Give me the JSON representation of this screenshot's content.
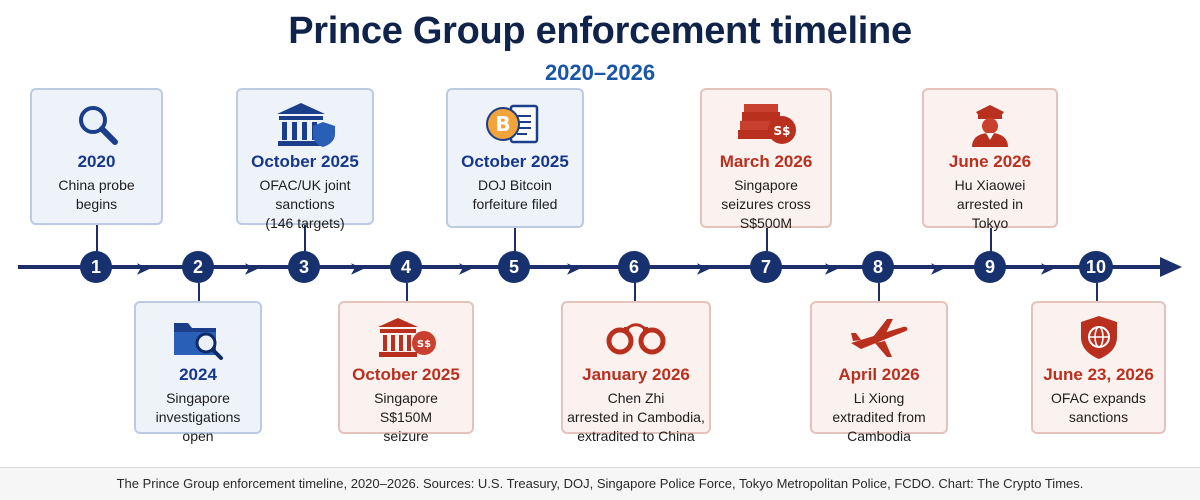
{
  "title": "Prince Group enforcement timeline",
  "subtitle": "2020–2026",
  "events": [
    {
      "number": "1",
      "date": "2020",
      "text": "China probe\nbegins",
      "icon": "magnifier-icon",
      "accent": "blue"
    },
    {
      "number": "2",
      "date": "2024",
      "text": "Singapore\ninvestigations\nopen",
      "icon": "folder-search-icon",
      "accent": "blue"
    },
    {
      "number": "3",
      "date": "October 2025",
      "text": "OFAC/UK joint\nsanctions\n(146 targets)",
      "icon": "bank-shield-icon",
      "accent": "blue"
    },
    {
      "number": "4",
      "date": "October 2025",
      "text": "Singapore\nS$150M\nseizure",
      "icon": "bank-money-icon",
      "accent": "red"
    },
    {
      "number": "5",
      "date": "October 2025",
      "text": "DOJ Bitcoin\nforfeiture filed",
      "icon": "bitcoin-document-icon",
      "accent": "blue"
    },
    {
      "number": "6",
      "date": "January 2026",
      "text": "Chen Zhi\narrested in Cambodia,\nextradited to China",
      "icon": "handcuffs-icon",
      "accent": "red"
    },
    {
      "number": "7",
      "date": "March 2026",
      "text": "Singapore\nseizures cross\nS$500M",
      "icon": "cash-stack-icon",
      "accent": "red"
    },
    {
      "number": "8",
      "date": "April 2026",
      "text": "Li Xiong\nextradited from\nCambodia",
      "icon": "airplane-icon",
      "accent": "red"
    },
    {
      "number": "9",
      "date": "June 2026",
      "text": "Hu Xiaowei\narrested in\nTokyo",
      "icon": "police-officer-icon",
      "accent": "red"
    },
    {
      "number": "10",
      "date": "June 23, 2026",
      "text": "OFAC expands\nsanctions",
      "icon": "globe-shield-icon",
      "accent": "red"
    }
  ],
  "colors": {
    "axis": "#1c2f6b",
    "blue_accent": "#17388a",
    "red_accent": "#b9301f"
  },
  "footer": "The Prince Group enforcement timeline, 2020–2026. Sources: U.S. Treasury, DOJ, Singapore Police Force, Tokyo Metropolitan Police, FCDO. Chart: The Crypto Times."
}
